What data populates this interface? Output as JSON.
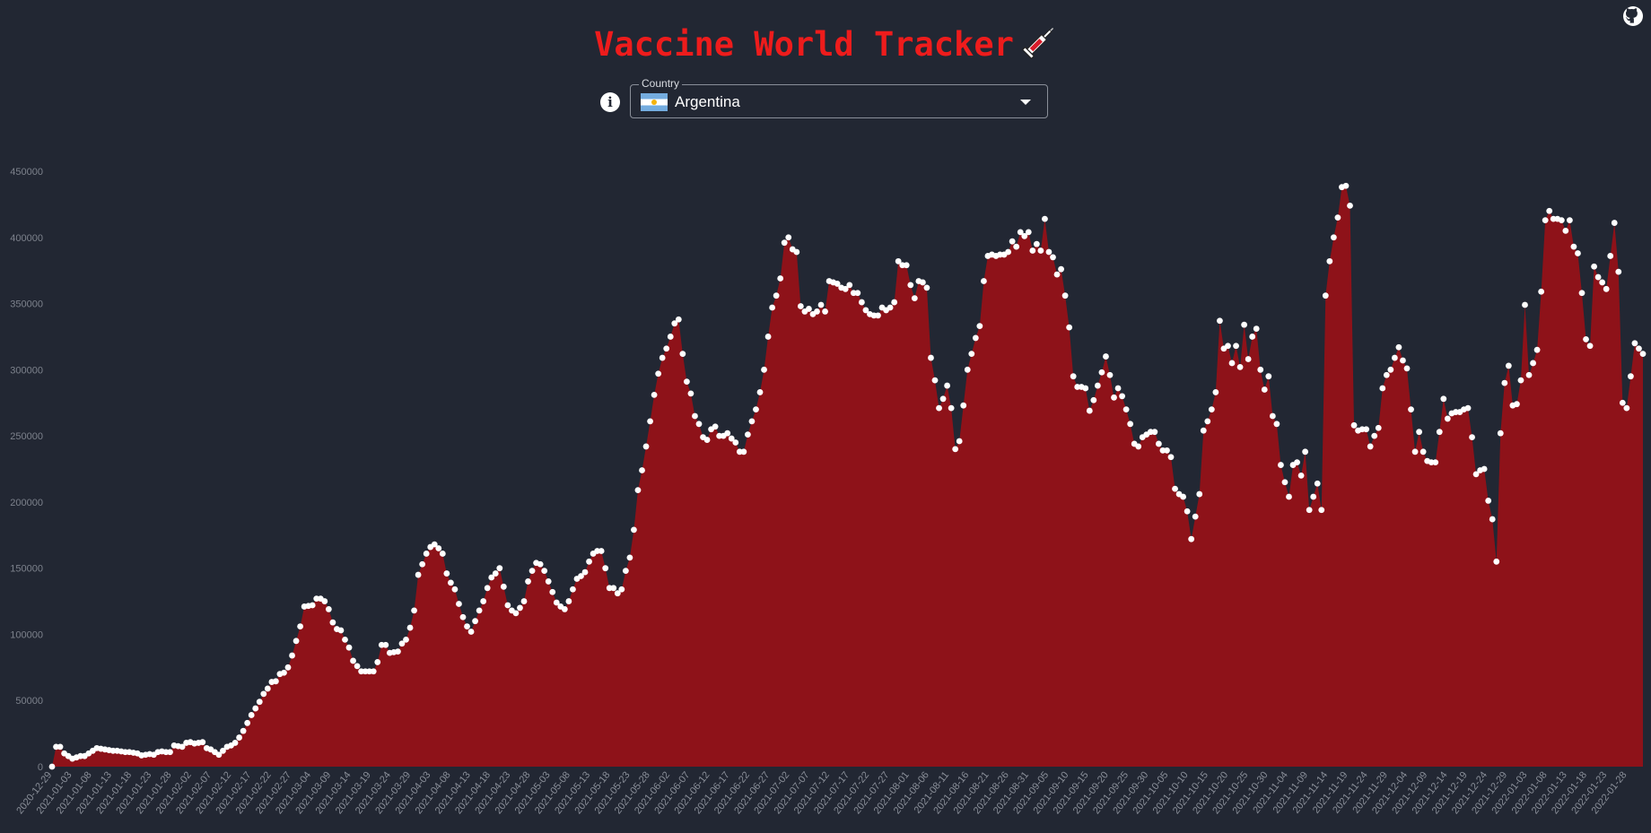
{
  "header": {
    "title": "Vaccine World Tracker",
    "title_color": "#ee1c1c",
    "syringe_icon": "syringe-icon",
    "github_icon": "github-icon"
  },
  "selector": {
    "label": "Country",
    "value": "Argentina",
    "flag_icon": "argentina-flag-icon",
    "info_icon": "info-icon",
    "arrow_icon": "caret-down-icon"
  },
  "chart_data": {
    "type": "area",
    "fill_color": "#8e1219",
    "point_color": "#ffffff",
    "ylim": [
      0,
      450000
    ],
    "y_ticks": [
      0,
      50000,
      100000,
      150000,
      200000,
      250000,
      300000,
      350000,
      400000,
      450000
    ],
    "x_start": "2020-12-29",
    "x_end": "2022-02-01",
    "x_tick_labels": [
      "2020-12-29",
      "2021-01-03",
      "2021-01-08",
      "2021-01-13",
      "2021-01-18",
      "2021-01-23",
      "2021-01-28",
      "2021-02-02",
      "2021-02-07",
      "2021-02-12",
      "2021-02-17",
      "2021-02-22",
      "2021-02-27",
      "2021-03-04",
      "2021-03-09",
      "2021-03-14",
      "2021-03-19",
      "2021-03-24",
      "2021-03-29",
      "2021-04-03",
      "2021-04-08",
      "2021-04-13",
      "2021-04-18",
      "2021-04-23",
      "2021-04-28",
      "2021-05-03",
      "2021-05-08",
      "2021-05-13",
      "2021-05-18",
      "2021-05-23",
      "2021-05-28",
      "2021-06-02",
      "2021-06-07",
      "2021-06-12",
      "2021-06-17",
      "2021-06-22",
      "2021-06-27",
      "2021-07-02",
      "2021-07-07",
      "2021-07-12",
      "2021-07-17",
      "2021-07-22",
      "2021-07-27",
      "2021-08-01",
      "2021-08-06",
      "2021-08-11",
      "2021-08-16",
      "2021-08-21",
      "2021-08-26",
      "2021-08-31",
      "2021-09-05",
      "2021-09-10",
      "2021-09-15",
      "2021-09-20",
      "2021-09-25",
      "2021-09-30",
      "2021-10-05",
      "2021-10-10",
      "2021-10-15",
      "2021-10-20",
      "2021-10-25",
      "2021-10-30",
      "2021-11-04",
      "2021-11-09",
      "2021-11-14",
      "2021-11-19",
      "2021-11-24",
      "2021-11-29",
      "2021-12-04",
      "2021-12-09",
      "2021-12-14",
      "2021-12-19",
      "2021-12-24",
      "2021-12-29",
      "2022-01-03",
      "2022-01-08",
      "2022-01-13",
      "2022-01-18",
      "2022-01-23",
      "2022-01-28"
    ],
    "values": [
      0,
      15000,
      15000,
      10000,
      8000,
      6000,
      7000,
      8000,
      8000,
      10000,
      12000,
      14000,
      13500,
      13000,
      12500,
      12000,
      12000,
      11500,
      11000,
      11000,
      10500,
      10000,
      8500,
      9000,
      9500,
      9000,
      11000,
      11500,
      11000,
      11000,
      16000,
      15500,
      15000,
      18000,
      18500,
      17500,
      18000,
      18500,
      14000,
      13000,
      11000,
      9000,
      12000,
      15000,
      16000,
      18000,
      22000,
      27000,
      33000,
      39000,
      44000,
      49000,
      55000,
      59000,
      64000,
      64500,
      70000,
      71000,
      75000,
      84000,
      95000,
      106000,
      121000,
      121500,
      122000,
      127000,
      127000,
      125000,
      119000,
      109000,
      104000,
      103000,
      96000,
      90000,
      80000,
      76000,
      72000,
      72000,
      72000,
      72000,
      79000,
      92000,
      92000,
      86000,
      86500,
      87000,
      93000,
      96000,
      105000,
      118000,
      145000,
      153000,
      161000,
      166000,
      168000,
      165000,
      161000,
      146000,
      139000,
      134000,
      123000,
      113000,
      106000,
      102000,
      110000,
      118000,
      125000,
      135000,
      143000,
      146000,
      150000,
      136000,
      122000,
      118000,
      116000,
      120000,
      125000,
      140000,
      148000,
      154000,
      153000,
      148000,
      140000,
      132000,
      124000,
      121000,
      119000,
      125000,
      134000,
      142000,
      144000,
      147000,
      155000,
      161000,
      163000,
      163000,
      150000,
      135000,
      135000,
      131000,
      134000,
      148000,
      158000,
      179000,
      209000,
      224000,
      242000,
      261000,
      281000,
      297000,
      309000,
      316000,
      325000,
      335000,
      338000,
      312000,
      291000,
      282000,
      265000,
      259000,
      249000,
      247000,
      255000,
      257000,
      250000,
      250000,
      252000,
      248000,
      245000,
      238000,
      238000,
      251000,
      261000,
      270000,
      283000,
      300000,
      325000,
      347000,
      356000,
      369000,
      396000,
      400000,
      391000,
      389000,
      348000,
      344000,
      346000,
      342000,
      344000,
      349000,
      344000,
      367000,
      366000,
      365000,
      362000,
      361000,
      364000,
      358000,
      358000,
      351000,
      345000,
      342000,
      341000,
      341000,
      347000,
      345000,
      347000,
      351000,
      382000,
      379000,
      379000,
      364000,
      354000,
      367000,
      366000,
      362000,
      309000,
      292000,
      271000,
      278000,
      288000,
      271000,
      240000,
      246000,
      273000,
      300000,
      312000,
      324000,
      333000,
      367000,
      386000,
      387000,
      386000,
      387000,
      387000,
      389000,
      397000,
      393000,
      404000,
      401000,
      404000,
      390000,
      395000,
      390000,
      414000,
      389000,
      385000,
      372000,
      376000,
      356000,
      332000,
      295000,
      287000,
      287000,
      286000,
      269000,
      277000,
      288000,
      298000,
      310000,
      296000,
      279000,
      286000,
      280000,
      270000,
      259000,
      244000,
      242000,
      249000,
      251000,
      253000,
      253000,
      244000,
      239000,
      239000,
      234000,
      210000,
      206000,
      204000,
      193000,
      172000,
      189000,
      206000,
      254000,
      261000,
      270000,
      283000,
      337000,
      316000,
      318000,
      305000,
      318000,
      302000,
      334000,
      308000,
      325000,
      331000,
      300000,
      285000,
      295000,
      265000,
      259000,
      228000,
      215000,
      204000,
      228000,
      230000,
      220000,
      238000,
      194000,
      204000,
      214000,
      194000,
      356000,
      382000,
      400000,
      415000,
      438000,
      439000,
      424000,
      258000,
      254000,
      255000,
      255000,
      242000,
      250000,
      256000,
      286000,
      296000,
      300000,
      309000,
      317000,
      307000,
      301000,
      270000,
      238000,
      253000,
      238000,
      231000,
      230000,
      230000,
      253000,
      278000,
      263000,
      267000,
      268000,
      268000,
      270000,
      271000,
      249000,
      221000,
      224000,
      225000,
      201000,
      187000,
      155000,
      252000,
      290000,
      303000,
      273000,
      274000,
      292000,
      349000,
      296000,
      305000,
      315000,
      359000,
      413000,
      420000,
      414000,
      414000,
      413000,
      405000,
      413000,
      393000,
      388000,
      358000,
      323000,
      318000,
      378000,
      370000,
      366000,
      361000,
      386000,
      411000,
      374000,
      275000,
      271000,
      295000,
      320000,
      316000,
      312000
    ]
  }
}
